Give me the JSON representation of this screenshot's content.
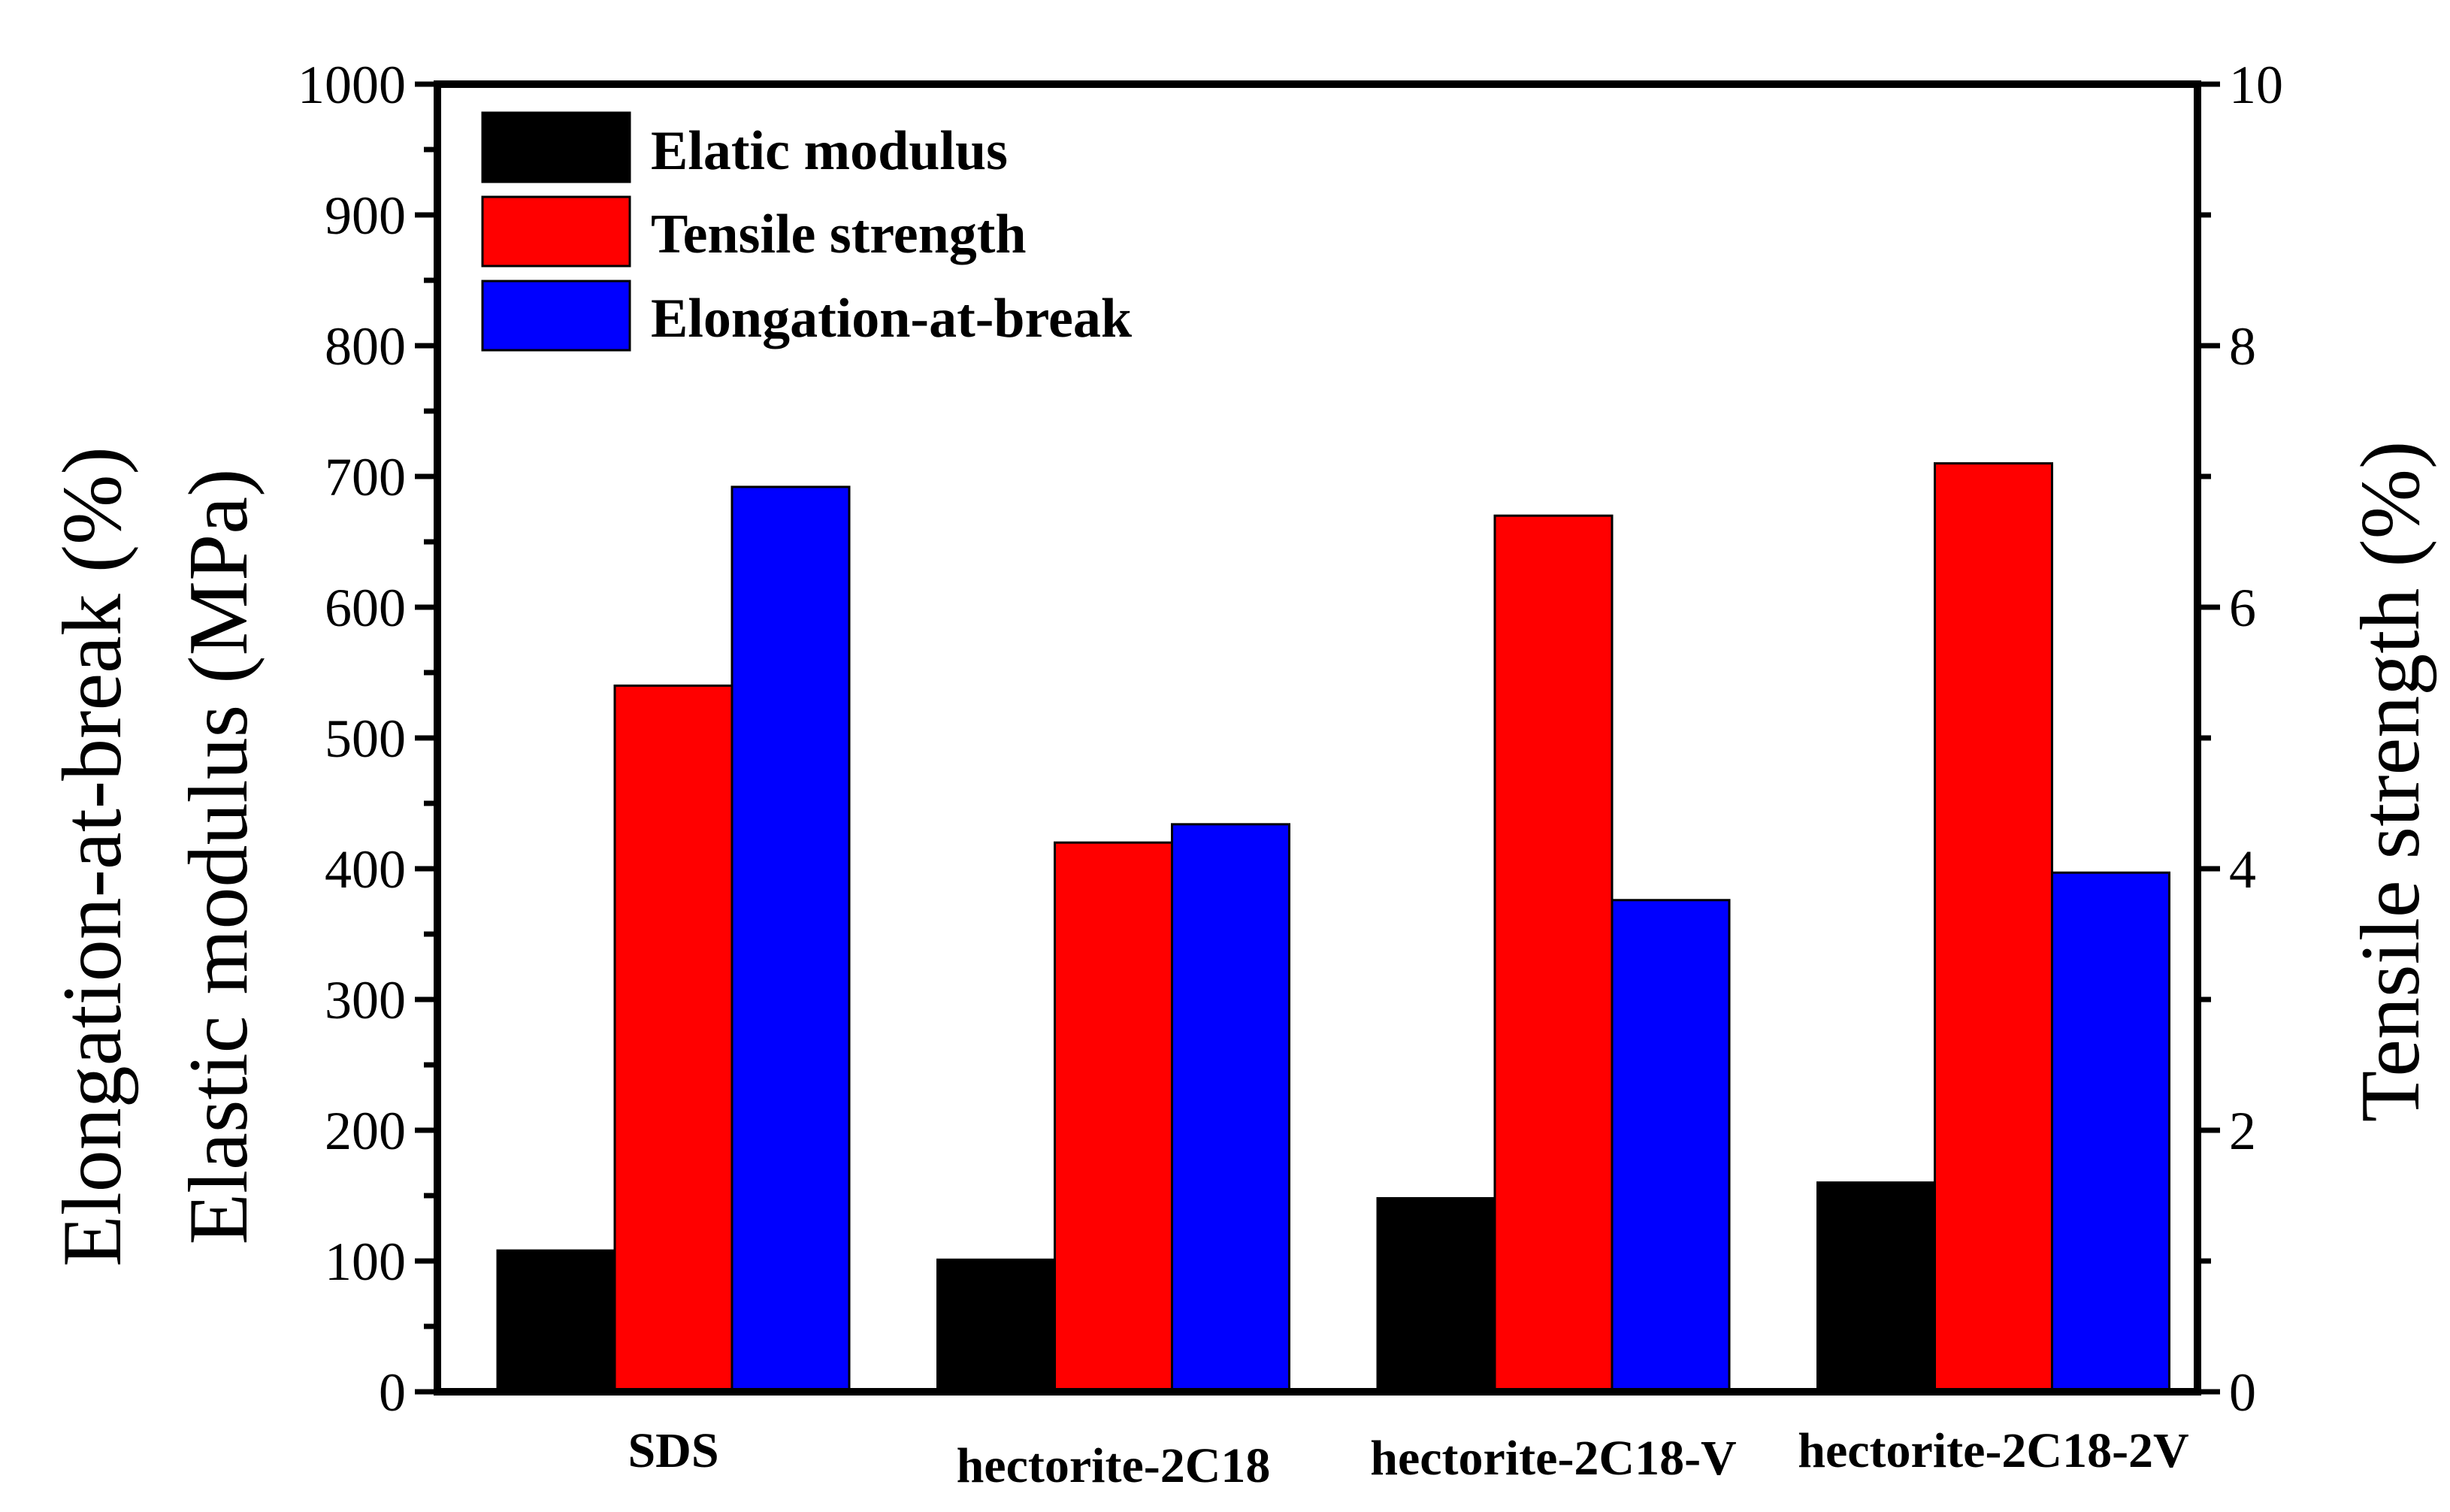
{
  "chart_data": {
    "type": "bar",
    "categories": [
      "SDS",
      "hectorite-2C18",
      "hectorite-2C18-V",
      "hectorite-2C18-2V"
    ],
    "series": [
      {
        "name": "Elatic modulus",
        "axis": "left",
        "color": "#000000",
        "values": [
          108,
          101,
          148,
          160
        ]
      },
      {
        "name": "Tensile strength",
        "axis": "right",
        "color": "#ff0000",
        "values": [
          5.4,
          4.2,
          6.7,
          7.1
        ]
      },
      {
        "name": "Elongation-at-break",
        "axis": "left",
        "color": "#0000ff",
        "values": [
          692,
          434,
          376,
          397
        ]
      }
    ],
    "left_axis": {
      "titles": [
        "Elongation-at-break (%)",
        "Elastic modulus (MPa)"
      ],
      "ylim": [
        0,
        1000
      ],
      "ticks": [
        "0",
        "100",
        "200",
        "300",
        "400",
        "500",
        "600",
        "700",
        "800",
        "900",
        "1000"
      ]
    },
    "right_axis": {
      "title": "Tensile strength (%)",
      "ylim": [
        0,
        10
      ],
      "ticks": [
        "0",
        "2",
        "4",
        "6",
        "8",
        "10"
      ]
    },
    "legend_position": "top-left",
    "grid": false
  }
}
